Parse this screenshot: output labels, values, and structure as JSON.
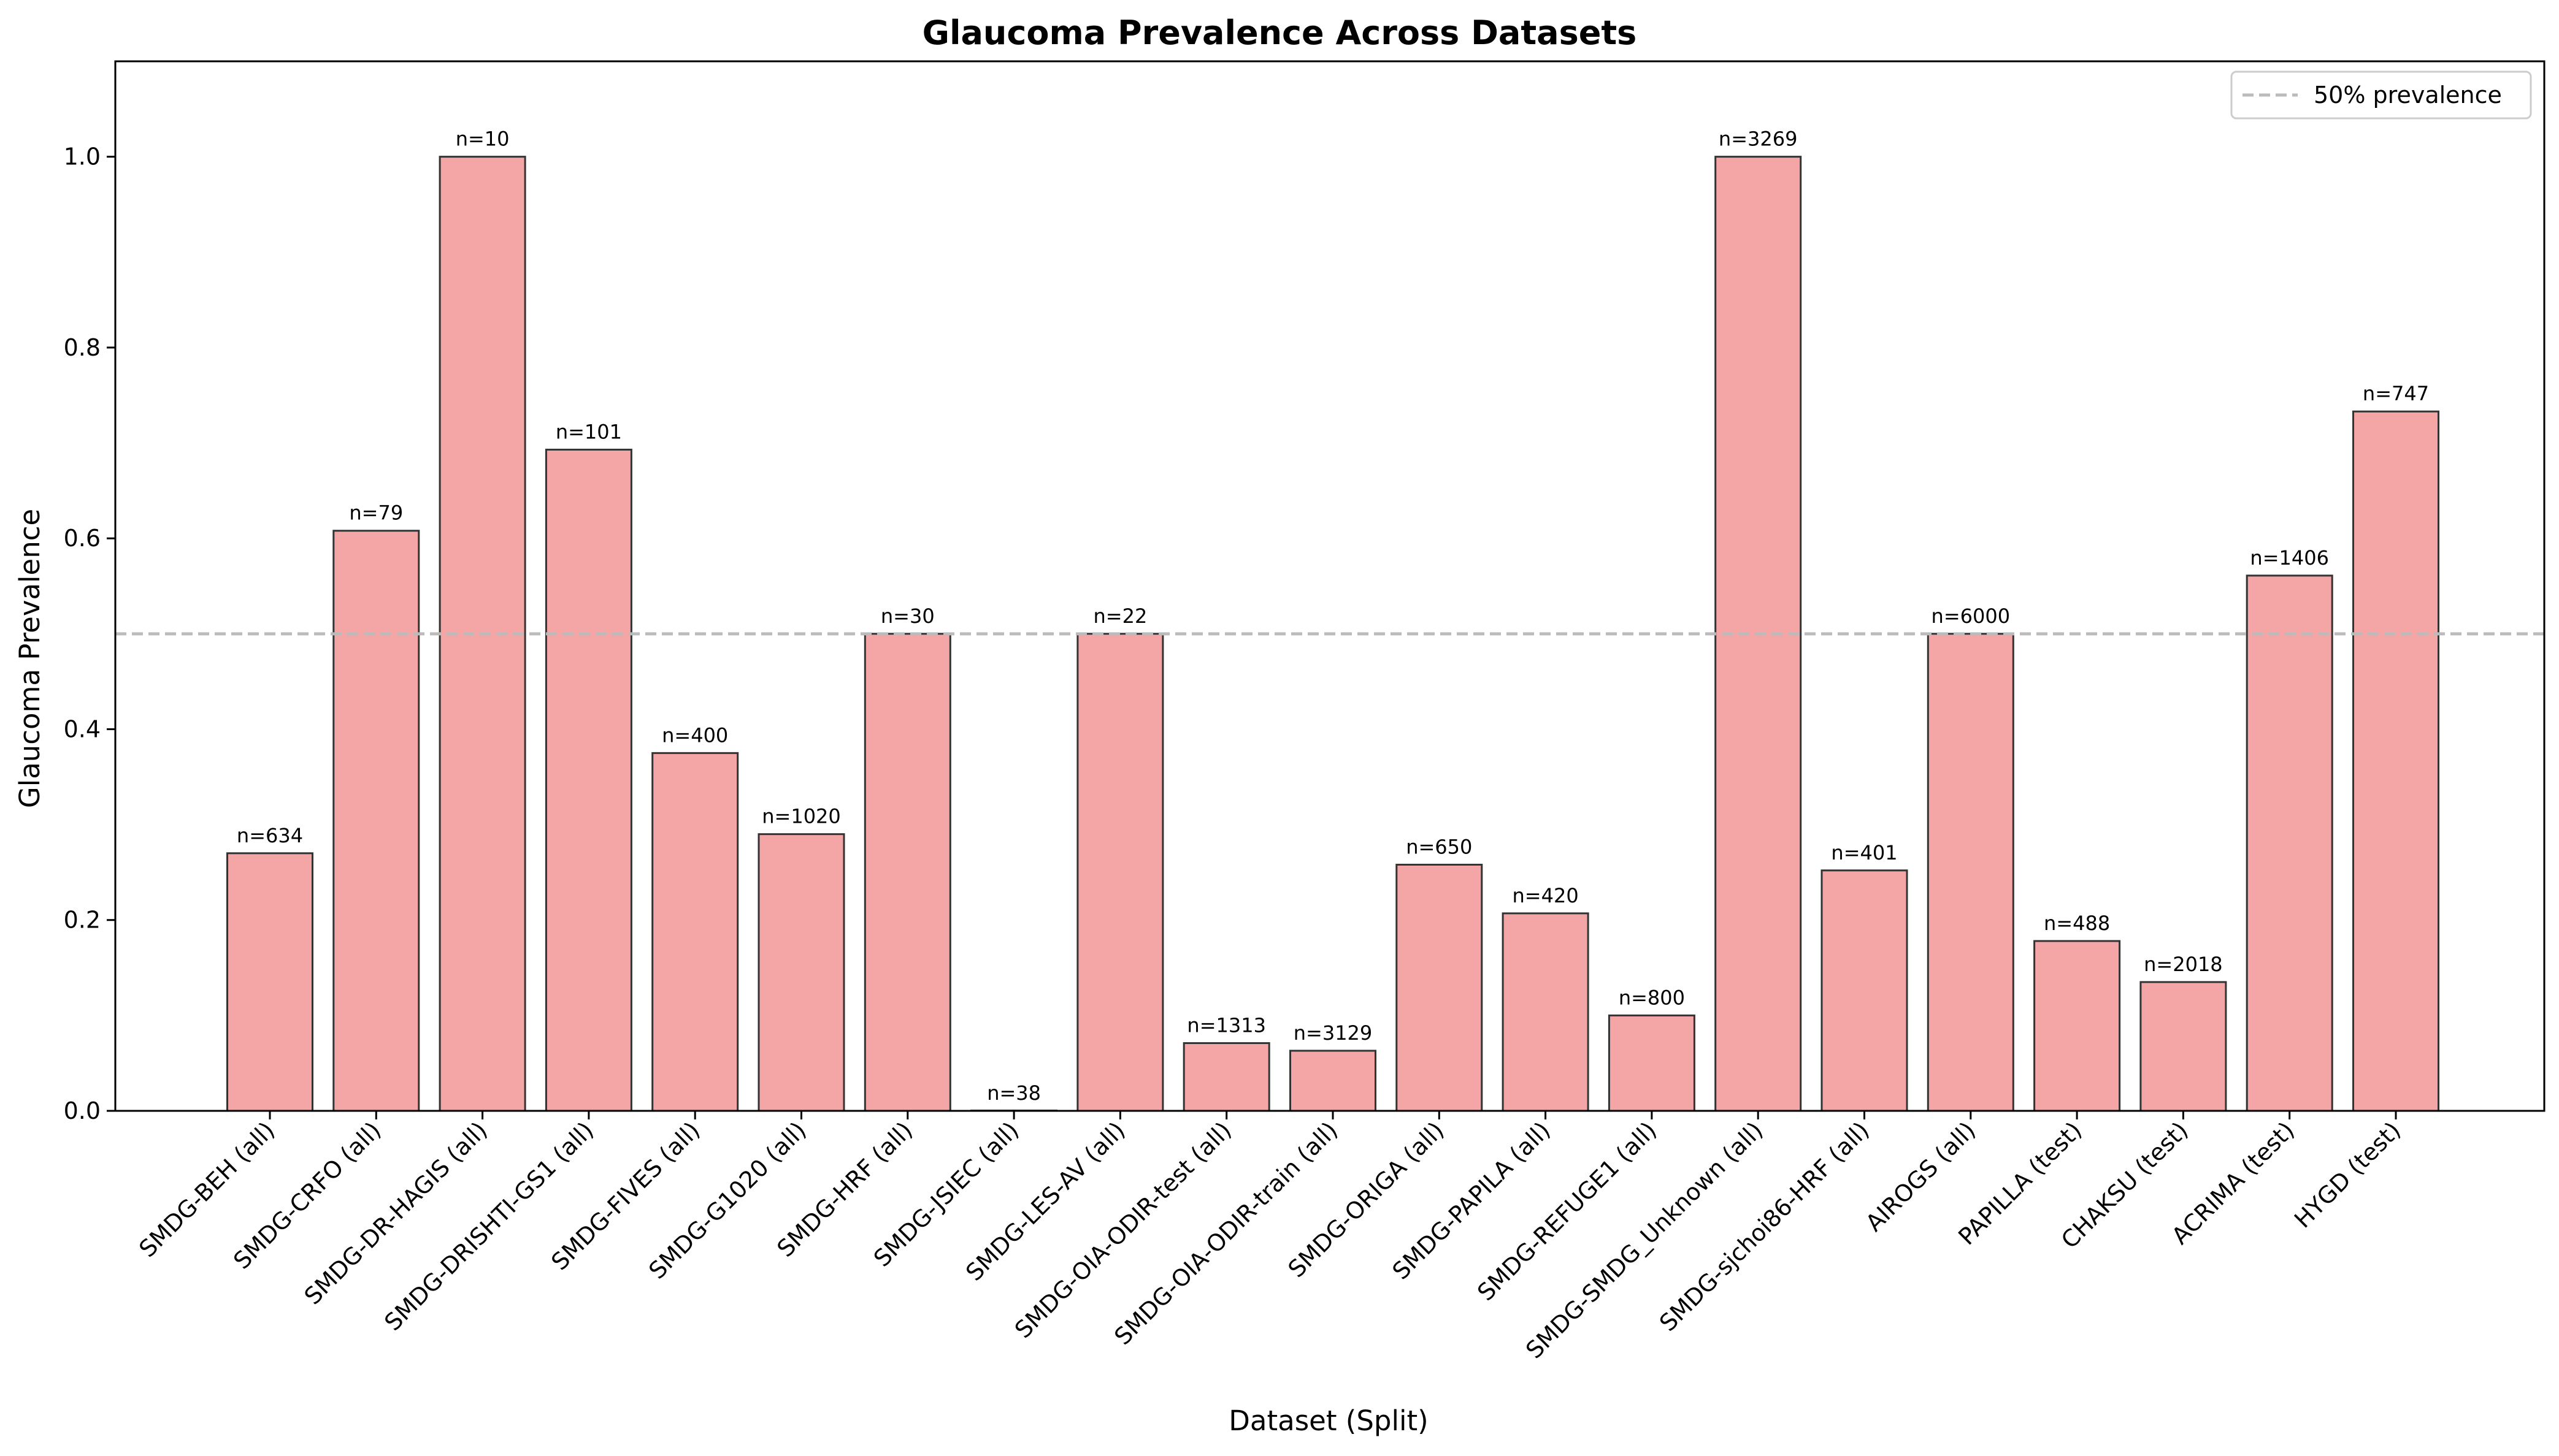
{
  "chart_data": {
    "type": "bar",
    "title": "Glaucoma Prevalence Across Datasets",
    "xlabel": "Dataset (Split)",
    "ylabel": "Glaucoma Prevalence",
    "ylim": [
      0,
      1.1
    ],
    "yticks": [
      "0.0",
      "0.2",
      "0.4",
      "0.6",
      "0.8",
      "1.0"
    ],
    "categories": [
      "SMDG-BEH (all)",
      "SMDG-CRFO (all)",
      "SMDG-DR-HAGIS (all)",
      "SMDG-DRISHTI-GS1 (all)",
      "SMDG-FIVES (all)",
      "SMDG-G1020 (all)",
      "SMDG-HRF (all)",
      "SMDG-JSIEC (all)",
      "SMDG-LES-AV (all)",
      "SMDG-OIA-ODIR-test (all)",
      "SMDG-OIA-ODIR-train (all)",
      "SMDG-ORIGA (all)",
      "SMDG-PAPILA (all)",
      "SMDG-REFUGE1 (all)",
      "SMDG-SMDG_Unknown (all)",
      "SMDG-sjchoi86-HRF (all)",
      "AIROGS (all)",
      "PAPILLA (test)",
      "CHAKSU (test)",
      "ACRIMA (test)",
      "HYGD (test)"
    ],
    "values": [
      0.27,
      0.608,
      1.0,
      0.693,
      0.375,
      0.29,
      0.5,
      0.0,
      0.5,
      0.071,
      0.063,
      0.258,
      0.207,
      0.1,
      1.0,
      0.252,
      0.5,
      0.178,
      0.135,
      0.561,
      0.733
    ],
    "bar_labels": [
      "n=634",
      "n=79",
      "n=10",
      "n=101",
      "n=400",
      "n=1020",
      "n=30",
      "n=38",
      "n=22",
      "n=1313",
      "n=3129",
      "n=650",
      "n=420",
      "n=800",
      "n=3269",
      "n=401",
      "n=6000",
      "n=488",
      "n=2018",
      "n=1406",
      "n=747"
    ],
    "reference_line": {
      "value": 0.5,
      "label": "50% prevalence",
      "style": "dashed"
    },
    "legend": {
      "placement": "top-right",
      "entries": [
        "50% prevalence"
      ]
    },
    "grid": false,
    "colors": {
      "bar_fill": "#f4a6a7",
      "bar_edge": "#333333",
      "reference_line": "#bbbbbb"
    }
  }
}
